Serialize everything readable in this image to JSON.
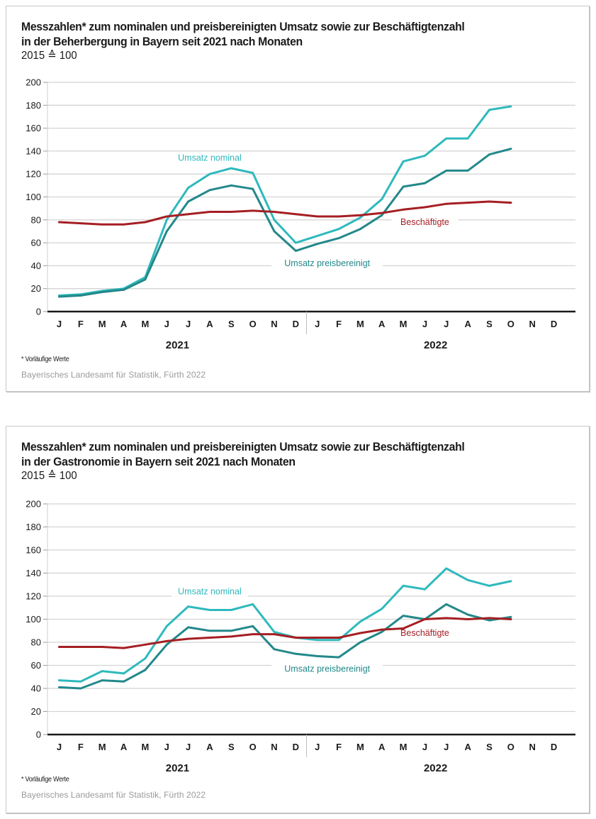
{
  "colors": {
    "umsatz_nominal": "#2fb9bd",
    "umsatz_preisbereinigt": "#23888a",
    "beschaeftigte": "#a51f23",
    "grid": "#d4d4d4",
    "axis": "#1a1a1a"
  },
  "chart_data": [
    {
      "type": "line",
      "title": "Messzahlen* zum nominalen und preisbereinigten Umsatz sowie zur Beschäftigtenzahl in der Beherbergung in Bayern seit 2021 nach Monaten",
      "title_line1": "Messzahlen* zum nominalen und preisbereinigten Umsatz sowie zur Beschäftigtenzahl",
      "title_line2": "in der Beherbergung in Bayern seit 2021 nach Monaten",
      "subtitle": "2015 ≙ 100",
      "xlabel": "",
      "ylabel": "",
      "ylim": [
        0,
        200
      ],
      "yticks": [
        0,
        20,
        40,
        60,
        80,
        100,
        120,
        140,
        160,
        180,
        200
      ],
      "grid": true,
      "categories": [
        "J",
        "F",
        "M",
        "A",
        "M",
        "J",
        "J",
        "A",
        "S",
        "O",
        "N",
        "D",
        "J",
        "F",
        "M",
        "A",
        "M",
        "J",
        "J",
        "A",
        "S",
        "O",
        "N",
        "D"
      ],
      "years": [
        "2021",
        "2022"
      ],
      "series": [
        {
          "name": "Umsatz nominal",
          "values": [
            14,
            15,
            18,
            20,
            30,
            80,
            108,
            120,
            125,
            121,
            80,
            60,
            66,
            72,
            82,
            98,
            131,
            136,
            151,
            151,
            176,
            179,
            null,
            null
          ]
        },
        {
          "name": "Umsatz preisbereinigt",
          "values": [
            13,
            14,
            17,
            19,
            28,
            70,
            96,
            106,
            110,
            107,
            70,
            53,
            59,
            64,
            72,
            84,
            109,
            112,
            123,
            123,
            137,
            142,
            null,
            null
          ]
        },
        {
          "name": "Beschäftigte",
          "values": [
            78,
            77,
            76,
            76,
            78,
            83,
            85,
            87,
            87,
            88,
            87,
            85,
            83,
            83,
            84,
            86,
            89,
            91,
            94,
            95,
            96,
            95,
            null,
            null
          ]
        }
      ],
      "annotations": [
        {
          "text": "Umsatz nominal",
          "series": "Umsatz nominal",
          "x_index": 7,
          "y": 134
        },
        {
          "text": "Umsatz preisbereinigt",
          "series": "Umsatz preisbereinigt",
          "x_index": 12,
          "y": 42
        },
        {
          "text": "Beschäftigte",
          "series": "Beschäftigte",
          "x_index": 17,
          "y": 78
        }
      ],
      "footnote": "* Vorläufige Werte",
      "source": "Bayerisches Landesamt für Statistik, Fürth 2022"
    },
    {
      "type": "line",
      "title": "Messzahlen* zum nominalen und preisbereinigten Umsatz sowie zur Beschäftigtenzahl in der Gastronomie in Bayern seit 2021 nach Monaten",
      "title_line1": "Messzahlen* zum nominalen und preisbereinigten Umsatz sowie zur Beschäftigtenzahl",
      "title_line2": "in der Gastronomie in Bayern seit 2021 nach Monaten",
      "subtitle": "2015 ≙ 100",
      "xlabel": "",
      "ylabel": "",
      "ylim": [
        0,
        200
      ],
      "yticks": [
        0,
        20,
        40,
        60,
        80,
        100,
        120,
        140,
        160,
        180,
        200
      ],
      "grid": true,
      "categories": [
        "J",
        "F",
        "M",
        "A",
        "M",
        "J",
        "J",
        "A",
        "S",
        "O",
        "N",
        "D",
        "J",
        "F",
        "M",
        "A",
        "M",
        "J",
        "J",
        "A",
        "S",
        "O",
        "N",
        "D"
      ],
      "years": [
        "2021",
        "2022"
      ],
      "series": [
        {
          "name": "Umsatz nominal",
          "values": [
            47,
            46,
            55,
            53,
            66,
            94,
            111,
            108,
            108,
            113,
            89,
            84,
            82,
            82,
            98,
            109,
            129,
            126,
            144,
            134,
            129,
            133,
            null,
            null
          ]
        },
        {
          "name": "Umsatz preisbereinigt",
          "values": [
            41,
            40,
            47,
            46,
            56,
            78,
            93,
            90,
            90,
            94,
            74,
            70,
            68,
            67,
            80,
            89,
            103,
            100,
            113,
            104,
            99,
            102,
            null,
            null
          ]
        },
        {
          "name": "Beschäftigte",
          "values": [
            76,
            76,
            76,
            75,
            78,
            81,
            83,
            84,
            85,
            87,
            87,
            84,
            84,
            84,
            88,
            91,
            92,
            100,
            101,
            100,
            101,
            100,
            null,
            null
          ]
        }
      ],
      "annotations": [
        {
          "text": "Umsatz nominal",
          "series": "Umsatz nominal",
          "x_index": 7,
          "y": 124
        },
        {
          "text": "Umsatz preisbereinigt",
          "series": "Umsatz preisbereinigt",
          "x_index": 12,
          "y": 57
        },
        {
          "text": "Beschäftigte",
          "series": "Beschäftigte",
          "x_index": 17,
          "y": 88
        }
      ],
      "footnote": "* Vorläufige Werte",
      "source": "Bayerisches Landesamt für Statistik, Fürth 2022"
    }
  ]
}
